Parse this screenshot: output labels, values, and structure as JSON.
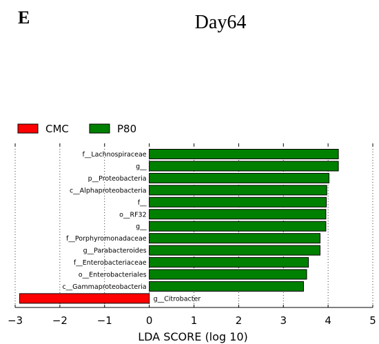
{
  "panel_letter": "E",
  "chart_data": {
    "type": "bar",
    "orientation": "horizontal",
    "title": "Day64",
    "xlabel": "LDA SCORE (log 10)",
    "ylabel": "",
    "xlim": [
      -3,
      5
    ],
    "xticks": [
      "−3",
      "−2",
      "−1",
      "0",
      "1",
      "2",
      "3",
      "4",
      "5"
    ],
    "grid": "vertical dotted",
    "legend": {
      "placement": "top-left",
      "entries": [
        {
          "name": "CMC",
          "color": "#ff0000"
        },
        {
          "name": "P80",
          "color": "#008000"
        }
      ]
    },
    "bars": [
      {
        "label": "f__Lachnospiraceae",
        "value": 4.23,
        "group": "P80"
      },
      {
        "label": "g__",
        "value": 4.23,
        "group": "P80"
      },
      {
        "label": "p__Proteobacteria",
        "value": 4.02,
        "group": "P80"
      },
      {
        "label": "c__Alphaproteobacteria",
        "value": 3.97,
        "group": "P80"
      },
      {
        "label": "f__",
        "value": 3.96,
        "group": "P80"
      },
      {
        "label": "o__RF32",
        "value": 3.95,
        "group": "P80"
      },
      {
        "label": "g__",
        "value": 3.95,
        "group": "P80"
      },
      {
        "label": "f__Porphyromonadaceae",
        "value": 3.82,
        "group": "P80"
      },
      {
        "label": "g__Parabacteroides",
        "value": 3.82,
        "group": "P80"
      },
      {
        "label": "f__Enterobacteriaceae",
        "value": 3.56,
        "group": "P80"
      },
      {
        "label": "o__Enterobacteriales",
        "value": 3.52,
        "group": "P80"
      },
      {
        "label": "c__Gammaproteobacteria",
        "value": 3.45,
        "group": "P80"
      },
      {
        "label": "g__Citrobacter",
        "value": -2.9,
        "group": "CMC"
      }
    ]
  }
}
